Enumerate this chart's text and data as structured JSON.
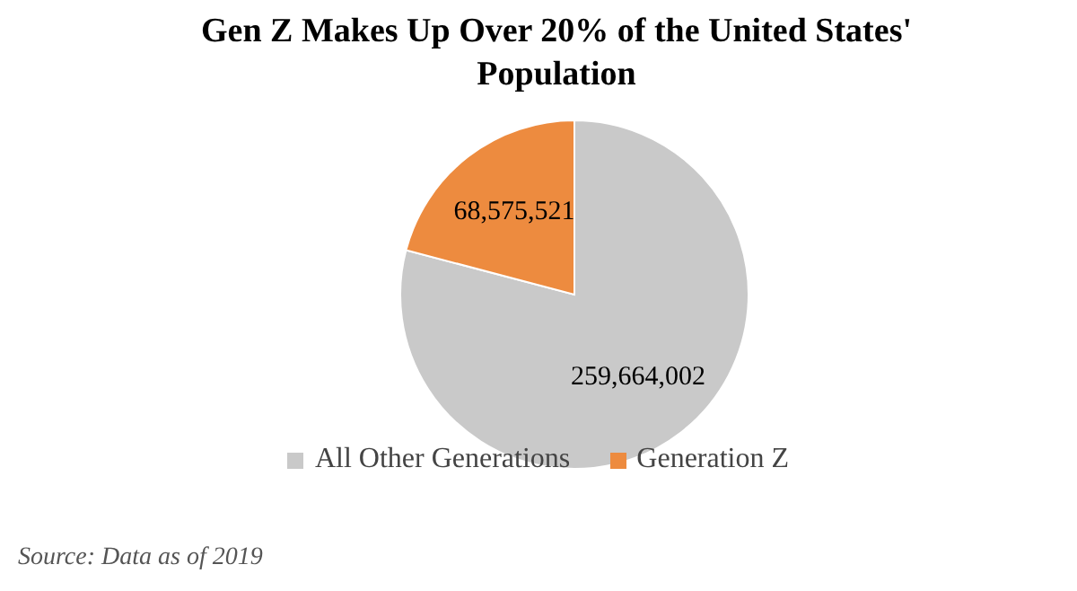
{
  "chart_data": {
    "type": "pie",
    "title": "Gen Z Makes Up Over 20% of the United States' Population",
    "categories": [
      "All Other Generations",
      "Generation Z"
    ],
    "values": [
      259664002,
      68575521
    ],
    "value_labels": [
      "259,664,002",
      "68,575,521"
    ],
    "colors": [
      "#c9c9c9",
      "#ed8b3f"
    ],
    "legend": "bottom",
    "annotations": [
      "Source: Data as of 2019"
    ]
  }
}
